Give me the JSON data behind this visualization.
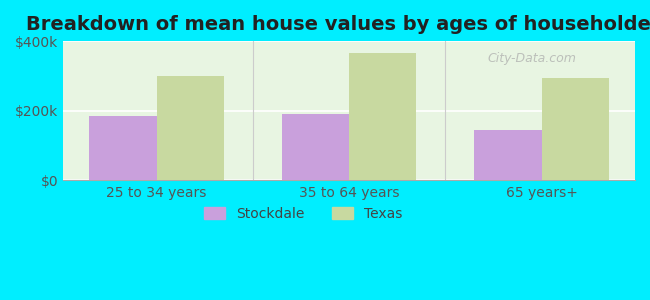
{
  "title": "Breakdown of mean house values by ages of householders",
  "categories": [
    "25 to 34 years",
    "35 to 64 years",
    "65 years+"
  ],
  "stockdale_values": [
    185000,
    190000,
    145000
  ],
  "texas_values": [
    300000,
    365000,
    295000
  ],
  "ylim": [
    0,
    400000
  ],
  "ytick_labels": [
    "$0",
    "$200k",
    "$400k"
  ],
  "ytick_values": [
    0,
    200000,
    400000
  ],
  "stockdale_color": "#c9a0dc",
  "texas_color": "#c8d9a0",
  "background_color": "#00eeff",
  "plot_bg_color": "#e8f5e2",
  "title_fontsize": 14,
  "tick_fontsize": 10,
  "legend_labels": [
    "Stockdale",
    "Texas"
  ],
  "bar_width": 0.35,
  "watermark": "City-Data.com"
}
